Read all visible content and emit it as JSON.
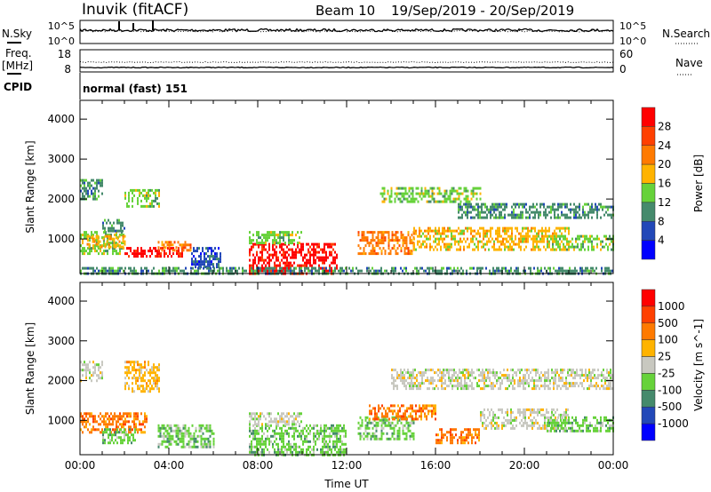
{
  "header": {
    "station": "Inuvik (fitACF)",
    "beam": "Beam 10",
    "dates": "19/Sep/2019 - 20/Sep/2019"
  },
  "noise_panel": {
    "left_label": "N.Sky",
    "right_label": "N.Search",
    "left_ticks": [
      "10^5",
      "10^0"
    ],
    "right_ticks": [
      "10^5",
      "10^0"
    ]
  },
  "freq_panel": {
    "left_label_1": "Freq.",
    "left_label_2": "[MHz]",
    "right_label": "Nave",
    "left_ticks": [
      "18",
      "8"
    ],
    "right_ticks": [
      "60",
      "0"
    ]
  },
  "cpid": {
    "label": "CPID",
    "value": "normal (fast) 151"
  },
  "chart_data": [
    {
      "type": "heatmap",
      "name": "power",
      "ylabel": "Slant Range [km]",
      "xlabel": "Time UT",
      "xlim": [
        0,
        24
      ],
      "ylim": [
        135,
        4470
      ],
      "yticks": [
        "1000",
        "2000",
        "3000",
        "4000"
      ],
      "yticks_values": [
        1000,
        2000,
        3000,
        4000
      ],
      "xticks": [
        "00:00",
        "04:00",
        "08:00",
        "12:00",
        "16:00",
        "20:00",
        "00:00"
      ],
      "colorbar": {
        "label": "Power [dB]",
        "ticks": [
          "4",
          "8",
          "12",
          "16",
          "20",
          "24",
          "28"
        ],
        "colors": [
          "#0000ff",
          "#2248b8",
          "#458a6c",
          "#66d23a",
          "#ffb300",
          "#ff7a00",
          "#ff4000",
          "#ff0000"
        ]
      },
      "patches": [
        {
          "t": [
            0,
            2
          ],
          "r": [
            600,
            1200
          ],
          "bin": 3
        },
        {
          "t": [
            0.3,
            2
          ],
          "r": [
            800,
            1100
          ],
          "bin": 4
        },
        {
          "t": [
            2,
            4.6
          ],
          "r": [
            550,
            800
          ],
          "bin": 7
        },
        {
          "t": [
            3.5,
            5
          ],
          "r": [
            700,
            950
          ],
          "bin": 5
        },
        {
          "t": [
            0,
            1
          ],
          "r": [
            2000,
            2500
          ],
          "bin": 2
        },
        {
          "t": [
            2,
            3.6
          ],
          "r": [
            1800,
            2250
          ],
          "bin": 3
        },
        {
          "t": [
            1,
            2
          ],
          "r": [
            1200,
            1500
          ],
          "bin": 2
        },
        {
          "t": [
            5,
            6.3
          ],
          "r": [
            300,
            800
          ],
          "bin": 1
        },
        {
          "t": [
            7.6,
            11.6
          ],
          "r": [
            150,
            900
          ],
          "bin": 7
        },
        {
          "t": [
            7.6,
            10
          ],
          "r": [
            900,
            1200
          ],
          "bin": 3
        },
        {
          "t": [
            12.5,
            15
          ],
          "r": [
            600,
            1200
          ],
          "bin": 5
        },
        {
          "t": [
            13.5,
            18
          ],
          "r": [
            1900,
            2300
          ],
          "bin": 3
        },
        {
          "t": [
            15,
            22
          ],
          "r": [
            700,
            1300
          ],
          "bin": 4
        },
        {
          "t": [
            17,
            24
          ],
          "r": [
            1500,
            1900
          ],
          "bin": 2
        },
        {
          "t": [
            21,
            24
          ],
          "r": [
            700,
            1100
          ],
          "bin": 3
        },
        {
          "t": [
            0,
            24
          ],
          "r": [
            150,
            300
          ],
          "bin": 2
        }
      ]
    },
    {
      "type": "heatmap",
      "name": "velocity",
      "ylabel": "Slant Range [km]",
      "xlim": [
        0,
        24
      ],
      "ylim": [
        135,
        4470
      ],
      "yticks": [
        "1000",
        "2000",
        "3000",
        "4000"
      ],
      "yticks_values": [
        1000,
        2000,
        3000,
        4000
      ],
      "colorbar": {
        "label": "Velocity [m s^-1]",
        "ticks": [
          "1000",
          "500",
          "100",
          "25",
          "-25",
          "-100",
          "-500",
          "-1000"
        ],
        "colors": [
          "#0000ff",
          "#2248b8",
          "#458a6c",
          "#66d23a",
          "#c8c8c0",
          "#ffb300",
          "#ff7a00",
          "#ff4000",
          "#ff0000"
        ]
      },
      "patches": [
        {
          "t": [
            0,
            1
          ],
          "r": [
            2000,
            2500
          ],
          "bin": 4
        },
        {
          "t": [
            0,
            3
          ],
          "r": [
            700,
            1200
          ],
          "bin": 6
        },
        {
          "t": [
            2,
            3.6
          ],
          "r": [
            1700,
            2500
          ],
          "bin": 5
        },
        {
          "t": [
            1,
            2.5
          ],
          "r": [
            400,
            800
          ],
          "bin": 3
        },
        {
          "t": [
            3.5,
            6
          ],
          "r": [
            300,
            900
          ],
          "bin": 3
        },
        {
          "t": [
            7.6,
            12
          ],
          "r": [
            150,
            900
          ],
          "bin": 3
        },
        {
          "t": [
            7.6,
            10
          ],
          "r": [
            900,
            1200
          ],
          "bin": 4
        },
        {
          "t": [
            12.5,
            15
          ],
          "r": [
            500,
            1100
          ],
          "bin": 3
        },
        {
          "t": [
            14,
            24
          ],
          "r": [
            1800,
            2300
          ],
          "bin": 4
        },
        {
          "t": [
            16,
            18
          ],
          "r": [
            400,
            800
          ],
          "bin": 6
        },
        {
          "t": [
            18,
            22
          ],
          "r": [
            800,
            1300
          ],
          "bin": 4
        },
        {
          "t": [
            21,
            24
          ],
          "r": [
            700,
            1100
          ],
          "bin": 3
        },
        {
          "t": [
            13,
            16
          ],
          "r": [
            1000,
            1400
          ],
          "bin": 6
        }
      ]
    }
  ]
}
